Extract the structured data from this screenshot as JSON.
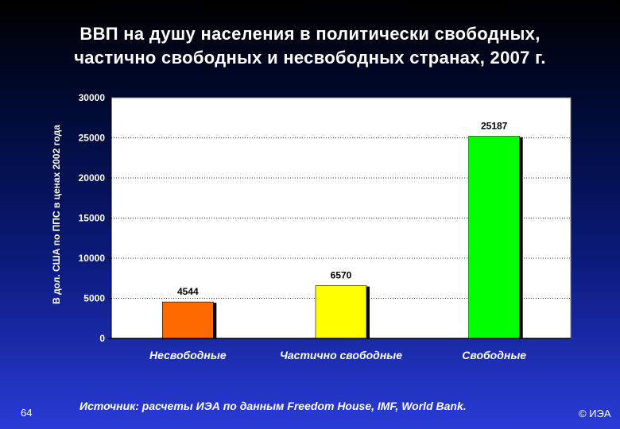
{
  "title_lines": [
    "ВВП на душу населения в политически свободных,",
    "частично свободных и несвободных странах, 2007 г."
  ],
  "page_number": "64",
  "source": "Источник:  расчеты ИЭА по данным Freedom House, IMF, World Bank.",
  "copyright": "© ИЭА",
  "colors": {
    "plot_background": "#ffffff",
    "gridline": "#333333",
    "bar_colors": [
      "#ff6a00",
      "#ffff00",
      "#00ff00"
    ]
  },
  "chart_data": {
    "type": "bar",
    "title": "ВВП на душу населения в политически свободных, частично свободных и несвободных странах, 2007 г.",
    "xlabel": "",
    "ylabel": "В дол. США по ППС в ценах 2002 года",
    "categories": [
      "Несвободные",
      "Частично свободные",
      "Свободные"
    ],
    "values": [
      4544,
      6570,
      25187
    ],
    "data_labels": [
      "4544",
      "6570",
      "25187"
    ],
    "ylim": [
      0,
      30000
    ],
    "yticks": [
      0,
      5000,
      10000,
      15000,
      20000,
      25000,
      30000
    ],
    "ytick_labels": [
      "0",
      "5000",
      "10000",
      "15000",
      "20000",
      "25000",
      "30000"
    ],
    "grid": "horizontal dotted",
    "legend": "none"
  }
}
